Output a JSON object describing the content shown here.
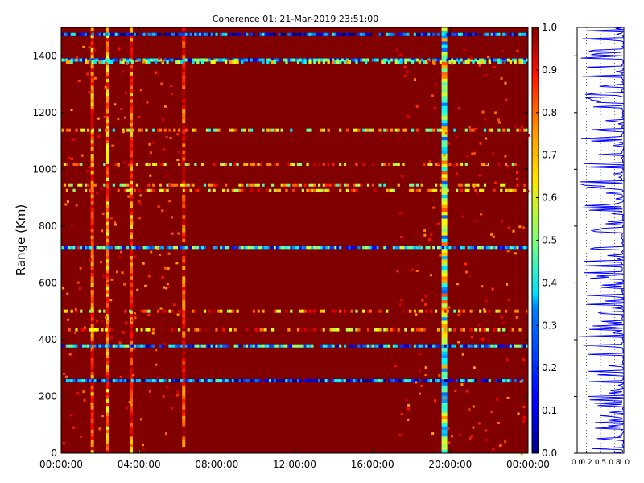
{
  "chart_data": [
    {
      "type": "heatmap",
      "title": "Coherence 01: 21-Mar-2019 23:51:00",
      "xlabel": "",
      "ylabel": "Range (Km)",
      "x_ticks": [
        "00:00:00",
        "04:00:00",
        "08:00:00",
        "12:00:00",
        "16:00:00",
        "20:00:00",
        "00:00:00"
      ],
      "y_ticks": [
        0,
        200,
        400,
        600,
        800,
        1000,
        1200,
        1400
      ],
      "xlim_hours": [
        0,
        24
      ],
      "ylim": [
        0,
        1500
      ],
      "colormap": "jet",
      "clim": [
        0.0,
        1.0
      ],
      "background_value": 1.0,
      "colorbar_ticks": [
        "0.0",
        "0.1",
        "0.2",
        "0.3",
        "0.4",
        "0.5",
        "0.6",
        "0.7",
        "0.8",
        "0.9",
        "1.0"
      ],
      "low_coherence_bands_km": [
        {
          "range": 1475,
          "value": 0.15
        },
        {
          "range": 1385,
          "value": 0.3
        },
        {
          "range": 1378,
          "value": 0.5
        },
        {
          "range": 1138,
          "value": 0.6
        },
        {
          "range": 1018,
          "value": 0.7
        },
        {
          "range": 945,
          "value": 0.65
        },
        {
          "range": 925,
          "value": 0.75
        },
        {
          "range": 725,
          "value": 0.35
        },
        {
          "range": 500,
          "value": 0.7
        },
        {
          "range": 435,
          "value": 0.75
        },
        {
          "range": 378,
          "value": 0.3
        },
        {
          "range": 255,
          "value": 0.2
        }
      ],
      "low_coherence_columns_hours": [
        {
          "time": 1.6,
          "value": 0.8
        },
        {
          "time": 2.4,
          "value": 0.75
        },
        {
          "time": 3.6,
          "value": 0.8
        },
        {
          "time": 6.3,
          "value": 0.85
        },
        {
          "time": 19.7,
          "value": 0.5
        }
      ]
    },
    {
      "type": "line",
      "x_ticks": [
        "0.0",
        "0.2",
        "0.5",
        "0.8",
        "1.0"
      ],
      "xlim": [
        0,
        1
      ],
      "ylim": [
        0,
        1500
      ],
      "color": "#0000ff",
      "grid": true
    }
  ]
}
